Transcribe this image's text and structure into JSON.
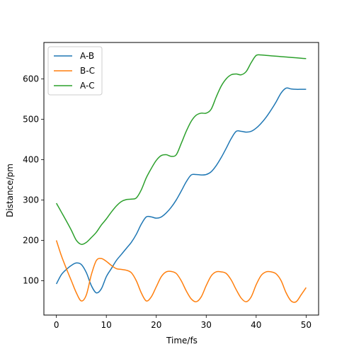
{
  "chart_data": {
    "type": "line",
    "title": "",
    "xlabel": "Time/fs",
    "ylabel": "Distance/pm",
    "xlim": [
      -2.5,
      52.5
    ],
    "ylim": [
      15,
      690
    ],
    "xticks": [
      0,
      10,
      20,
      30,
      40,
      50
    ],
    "yticks": [
      100,
      200,
      300,
      400,
      500,
      600
    ],
    "grid": false,
    "legend_position": "upper-left",
    "x": [
      0,
      1,
      2,
      3,
      4,
      5,
      6,
      7,
      8,
      9,
      10,
      11,
      12,
      13,
      14,
      15,
      16,
      17,
      18,
      19,
      20,
      21,
      22,
      23,
      24,
      25,
      26,
      27,
      28,
      29,
      30,
      31,
      32,
      33,
      34,
      35,
      36,
      37,
      38,
      39,
      40,
      41,
      42,
      43,
      44,
      45,
      46,
      47,
      48,
      49,
      50
    ],
    "series": [
      {
        "name": "A-B",
        "color": "#1f77b4",
        "values": [
          92,
          115,
          128,
          138,
          144,
          140,
          120,
          88,
          70,
          80,
          110,
          130,
          150,
          165,
          180,
          195,
          215,
          240,
          258,
          258,
          255,
          258,
          268,
          282,
          300,
          322,
          345,
          362,
          363,
          362,
          363,
          370,
          385,
          405,
          428,
          452,
          470,
          470,
          468,
          470,
          478,
          490,
          505,
          523,
          543,
          565,
          577,
          575,
          574,
          574,
          574
        ]
      },
      {
        "name": "B-C",
        "color": "#ff7f0e",
        "values": [
          200,
          162,
          130,
          100,
          70,
          50,
          65,
          115,
          150,
          155,
          148,
          138,
          130,
          128,
          126,
          120,
          100,
          70,
          50,
          60,
          85,
          110,
          122,
          123,
          118,
          100,
          75,
          55,
          48,
          60,
          88,
          112,
          122,
          122,
          118,
          102,
          78,
          57,
          48,
          60,
          90,
          113,
          122,
          122,
          117,
          100,
          70,
          50,
          48,
          65,
          83
        ]
      },
      {
        "name": "A-C",
        "color": "#2ca02c",
        "values": [
          292,
          270,
          248,
          225,
          200,
          190,
          195,
          207,
          220,
          238,
          253,
          270,
          285,
          296,
          301,
          302,
          305,
          325,
          355,
          378,
          398,
          410,
          412,
          408,
          412,
          440,
          470,
          495,
          510,
          515,
          515,
          525,
          555,
          582,
          600,
          610,
          612,
          610,
          618,
          640,
          658,
          659,
          658,
          657,
          656,
          655,
          654,
          653,
          652,
          651,
          650
        ]
      }
    ]
  }
}
